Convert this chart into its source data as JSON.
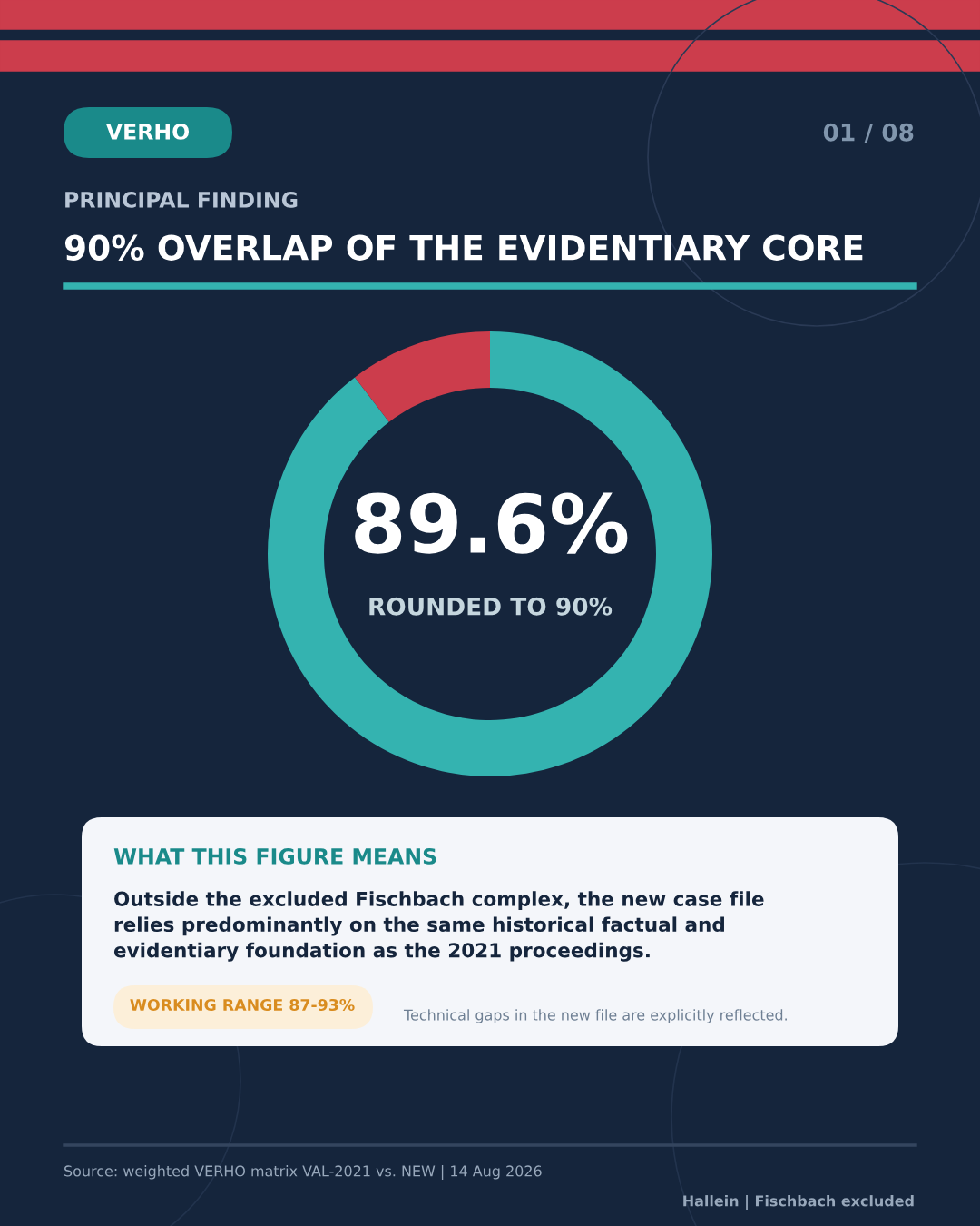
{
  "chart_data": {
    "type": "donut",
    "title": "90% OVERLAP OF THE EVIDENTIARY CORE",
    "subtitle": "PRINCIPAL FINDING",
    "categories": [
      null,
      null
    ],
    "values": [
      89.6,
      10.4
    ],
    "colors": [
      "#34b3b0",
      "#cc3d4c"
    ],
    "legend": false,
    "annotations": [
      "VERHO",
      "01 / 08",
      "89.6%",
      "ROUNDED TO 90%",
      "WHAT THIS FIGURE MEANS",
      "Outside the excluded Fischbach complex, the new case file\nrelies predominantly on the same historical factual and\nevidentiary foundation as the 2021 proceedings.",
      "WORKING RANGE 87-93%",
      "Technical gaps in the new file are explicitly reflected.",
      "Source: weighted VERHO matrix VAL-2021 vs. NEW | 14 Aug 2026",
      "Hallein | Fischbach excluded"
    ]
  }
}
